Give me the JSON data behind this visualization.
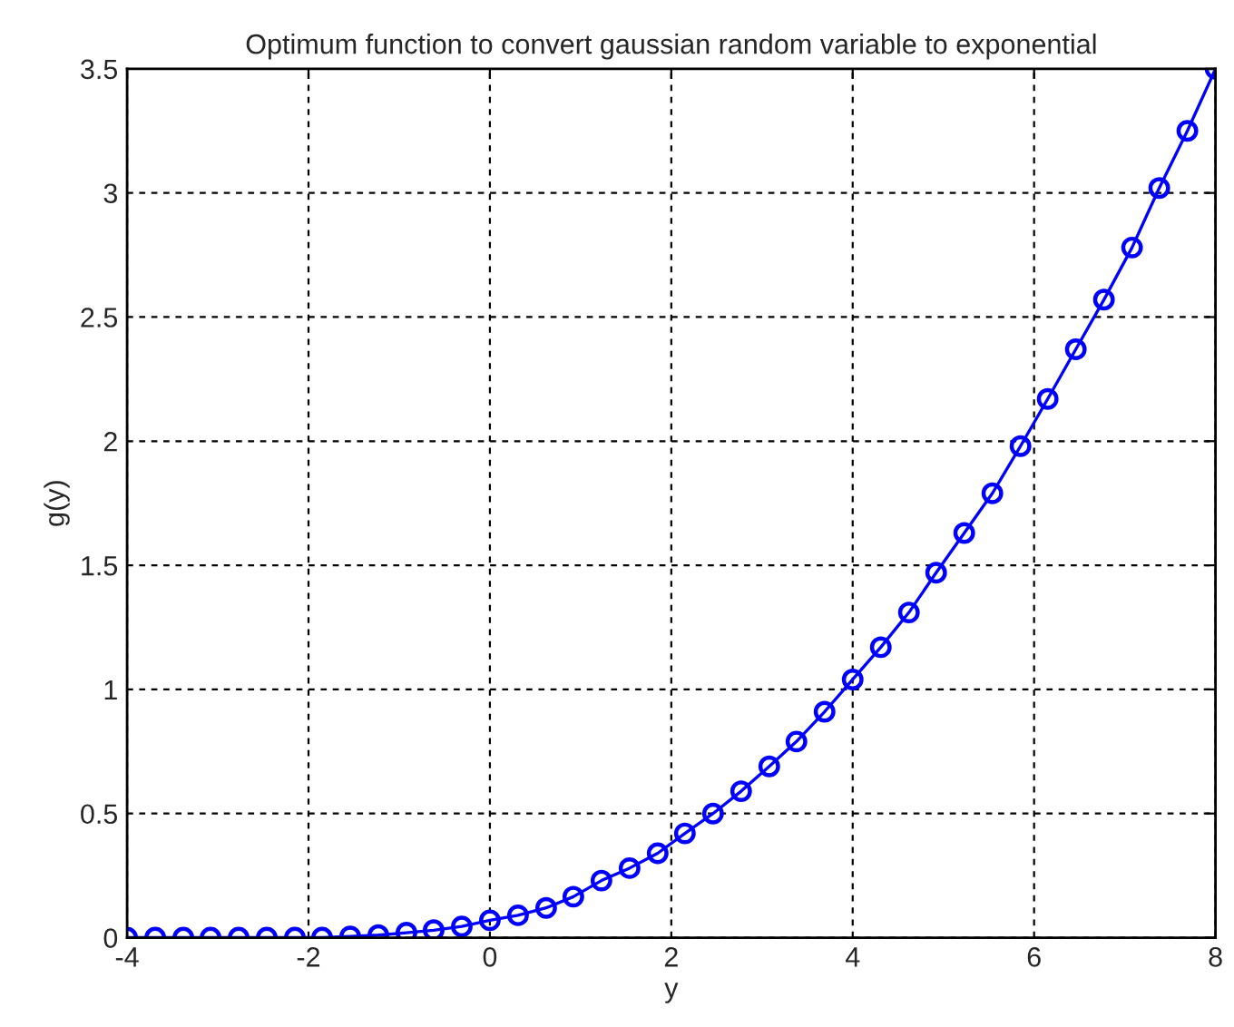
{
  "chart_data": {
    "type": "line",
    "title": "Optimum function to convert gaussian random variable to exponential",
    "xlabel": "y",
    "ylabel": "g(y)",
    "x": [
      -4,
      -3.69,
      -3.38,
      -3.08,
      -2.77,
      -2.46,
      -2.15,
      -1.85,
      -1.54,
      -1.23,
      -0.92,
      -0.62,
      -0.31,
      0,
      0.31,
      0.62,
      0.92,
      1.23,
      1.54,
      1.85,
      2.15,
      2.46,
      2.77,
      3.08,
      3.38,
      3.69,
      4,
      4.31,
      4.62,
      4.92,
      5.23,
      5.54,
      5.85,
      6.15,
      6.46,
      6.77,
      7.08,
      7.38,
      7.69,
      8
    ],
    "series": [
      {
        "color": "#0000ff",
        "values": [
          0,
          0,
          0,
          0,
          0,
          0,
          0,
          0,
          0.005,
          0.01,
          0.02,
          0.03,
          0.045,
          0.07,
          0.09,
          0.12,
          0.165,
          0.23,
          0.28,
          0.34,
          0.42,
          0.5,
          0.59,
          0.69,
          0.79,
          0.91,
          1.04,
          1.17,
          1.31,
          1.47,
          1.63,
          1.79,
          1.98,
          2.17,
          2.37,
          2.57,
          2.78,
          3.02,
          3.25,
          3.5
        ]
      }
    ],
    "xlim": [
      -4,
      8
    ],
    "ylim": [
      0,
      3.5
    ],
    "xticks": [
      -4,
      -2,
      0,
      2,
      4,
      6,
      8
    ],
    "yticks": [
      0,
      0.5,
      1,
      1.5,
      2,
      2.5,
      3,
      3.5
    ],
    "grid": true,
    "marker": "circle",
    "line_style": "solid"
  }
}
